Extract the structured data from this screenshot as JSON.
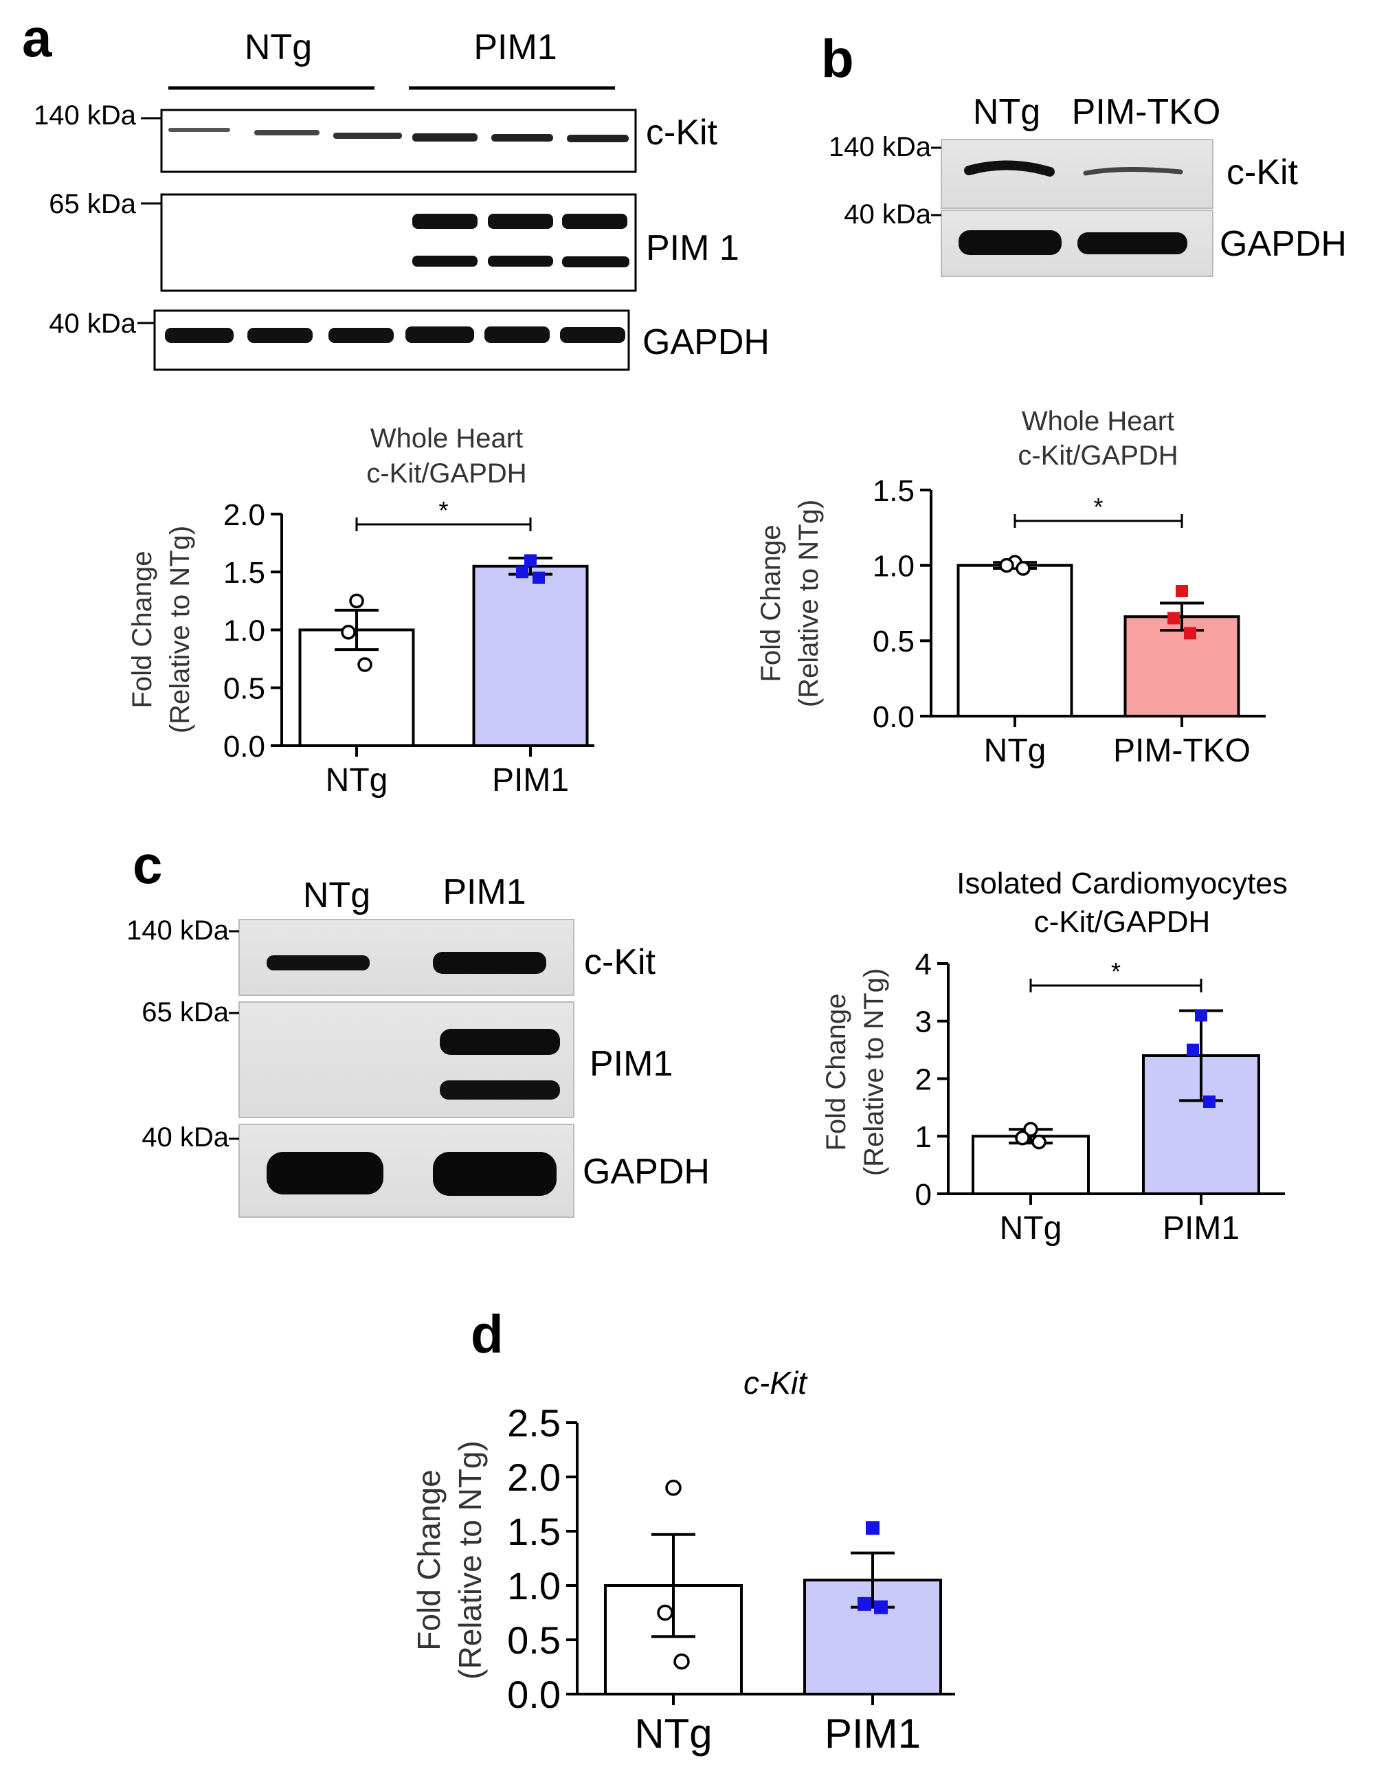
{
  "panels": {
    "a": {
      "letter": "a",
      "blot": {
        "groups": [
          "NTg",
          "PIM1"
        ],
        "markers": [
          "140 kDa",
          "65 kDa",
          "40 kDa"
        ],
        "bands": [
          "c-Kit",
          "PIM 1",
          "GAPDH"
        ]
      }
    },
    "b": {
      "letter": "b",
      "blot": {
        "groups": [
          "NTg",
          "PIM-TKO"
        ],
        "markers": [
          "140 kDa",
          "40 kDa"
        ],
        "bands": [
          "c-Kit",
          "GAPDH"
        ]
      }
    },
    "c": {
      "letter": "c",
      "blot": {
        "groups": [
          "NTg",
          "PIM1"
        ],
        "markers": [
          "140 kDa",
          "65 kDa",
          "40 kDa"
        ],
        "bands": [
          "c-Kit",
          "PIM1",
          "GAPDH"
        ]
      }
    },
    "d": {
      "letter": "d"
    }
  },
  "colors": {
    "white_bar": "#ffffff",
    "pim1_bar": "#c9caf9",
    "tko_bar": "#f7a1a0",
    "pim1_points": "#1414e6",
    "tko_points": "#e0141e"
  },
  "chart_data": [
    {
      "id": "a",
      "type": "bar",
      "title": "Whole  Heart\nc-Kit/GAPDH",
      "ylabel": "Fold  Change\n(Relative to NTg)",
      "categories": [
        "NTg",
        "PIM1"
      ],
      "values": [
        1.0,
        1.55
      ],
      "errors": [
        0.17,
        0.07
      ],
      "points": [
        [
          1.25,
          0.98,
          0.7
        ],
        [
          1.6,
          1.5,
          1.45
        ]
      ],
      "ylim": [
        0,
        2.0
      ],
      "yticks": [
        "0.0",
        "0.5",
        "1.0",
        "1.5",
        "2.0"
      ],
      "significance": "*"
    },
    {
      "id": "b",
      "type": "bar",
      "title": "Whole Heart\nc-Kit/GAPDH",
      "ylabel": "Fold  Change\n(Relative to NTg)",
      "categories": [
        "NTg",
        "PIM-TKO"
      ],
      "values": [
        1.0,
        0.66
      ],
      "errors": [
        0.02,
        0.09
      ],
      "points": [
        [
          1.02,
          1.0,
          0.98
        ],
        [
          0.83,
          0.65,
          0.55
        ]
      ],
      "ylim": [
        0,
        1.5
      ],
      "yticks": [
        "0.0",
        "0.5",
        "1.0",
        "1.5"
      ],
      "significance": "*"
    },
    {
      "id": "c",
      "type": "bar",
      "title": "Isolated  Cardiomyocytes\nc-Kit/GAPDH",
      "ylabel": "Fold  Change\n(Relative to NTg)",
      "categories": [
        "NTg",
        "PIM1"
      ],
      "values": [
        1.0,
        2.4
      ],
      "errors": [
        0.12,
        0.78
      ],
      "points": [
        [
          1.12,
          0.97,
          0.9
        ],
        [
          3.1,
          2.5,
          1.6
        ]
      ],
      "ylim": [
        0,
        4
      ],
      "yticks": [
        "0",
        "1",
        "2",
        "3",
        "4"
      ],
      "significance": "*"
    },
    {
      "id": "d",
      "type": "bar",
      "title": "c-Kit",
      "ylabel": "Fold  Change\n(Relative to NTg)",
      "categories": [
        "NTg",
        "PIM1"
      ],
      "values": [
        1.0,
        1.05
      ],
      "errors": [
        0.47,
        0.25
      ],
      "points": [
        [
          1.9,
          0.75,
          0.3
        ],
        [
          1.53,
          0.83,
          0.8
        ]
      ],
      "ylim": [
        0,
        2.5
      ],
      "yticks": [
        "0.0",
        "0.5",
        "1.0",
        "1.5",
        "2.0",
        "2.5"
      ],
      "significance": ""
    }
  ]
}
